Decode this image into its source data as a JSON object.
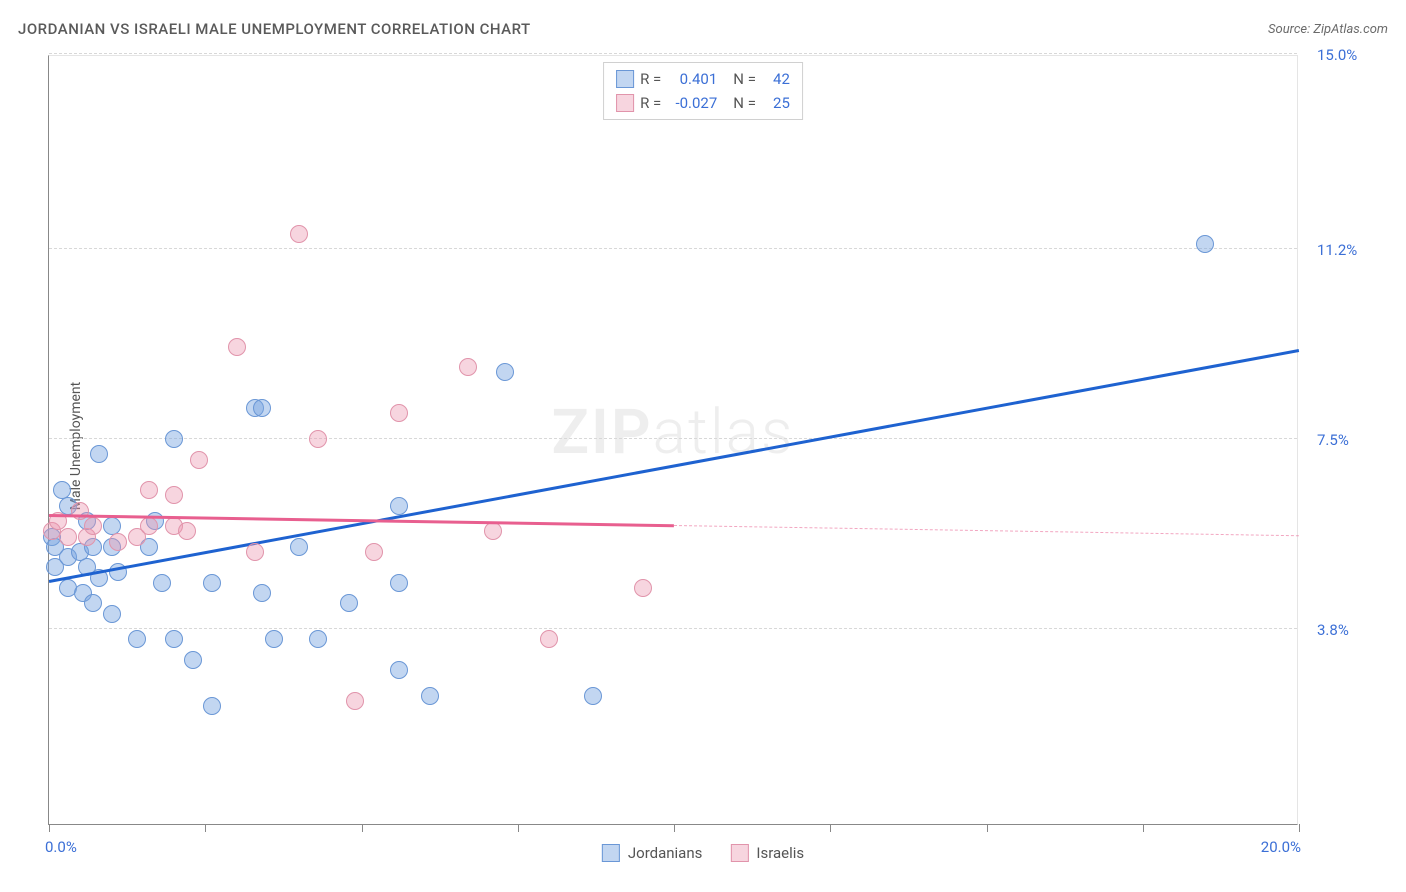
{
  "title": "JORDANIAN VS ISRAELI MALE UNEMPLOYMENT CORRELATION CHART",
  "source": "Source: ZipAtlas.com",
  "ylabel": "Male Unemployment",
  "watermark_bold": "ZIP",
  "watermark_light": "atlas",
  "chart": {
    "type": "scatter",
    "background_color": "#ffffff",
    "grid_color": "#d8d8d8",
    "axis_color": "#888888",
    "xlim": [
      0,
      20
    ],
    "ylim": [
      0,
      15
    ],
    "xtick_positions": [
      0,
      2.5,
      5,
      7.5,
      10,
      12.5,
      15,
      17.5,
      20
    ],
    "x_min_label": "0.0%",
    "x_max_label": "20.0%",
    "ytick_lines": [
      3.8,
      7.5,
      11.2,
      15.0
    ],
    "ytick_labels": [
      "3.8%",
      "7.5%",
      "11.2%",
      "15.0%"
    ],
    "marker_radius": 9,
    "marker_stroke_width": 1.5,
    "trend_line_width": 2.5,
    "series": [
      {
        "name": "Jordanians",
        "fill_color": "rgba(120,165,225,0.45)",
        "stroke_color": "#6a97d6",
        "trend_color": "#1e62d0",
        "trend_style": "solid",
        "R": "0.401",
        "N": "42",
        "trend_x1": 0,
        "trend_y1": 4.7,
        "trend_x2": 20,
        "trend_y2": 9.2,
        "points": [
          [
            0.05,
            5.6
          ],
          [
            0.1,
            5.4
          ],
          [
            0.1,
            5.0
          ],
          [
            0.2,
            6.5
          ],
          [
            0.3,
            5.2
          ],
          [
            0.3,
            4.6
          ],
          [
            0.3,
            6.2
          ],
          [
            0.5,
            5.3
          ],
          [
            0.55,
            4.5
          ],
          [
            0.6,
            5.9
          ],
          [
            0.6,
            5.0
          ],
          [
            0.7,
            5.4
          ],
          [
            0.7,
            4.3
          ],
          [
            0.8,
            7.2
          ],
          [
            0.8,
            4.8
          ],
          [
            1.0,
            5.4
          ],
          [
            1.0,
            5.8
          ],
          [
            1.0,
            4.1
          ],
          [
            1.1,
            4.9
          ],
          [
            1.4,
            3.6
          ],
          [
            1.6,
            5.4
          ],
          [
            1.7,
            5.9
          ],
          [
            1.8,
            4.7
          ],
          [
            2.0,
            7.5
          ],
          [
            2.0,
            3.6
          ],
          [
            2.3,
            3.2
          ],
          [
            2.6,
            4.7
          ],
          [
            2.6,
            2.3
          ],
          [
            3.3,
            8.1
          ],
          [
            3.4,
            8.1
          ],
          [
            3.4,
            4.5
          ],
          [
            3.6,
            3.6
          ],
          [
            4.0,
            5.4
          ],
          [
            4.3,
            3.6
          ],
          [
            4.8,
            4.3
          ],
          [
            5.6,
            4.7
          ],
          [
            5.6,
            3.0
          ],
          [
            5.6,
            6.2
          ],
          [
            6.1,
            2.5
          ],
          [
            7.3,
            8.8
          ],
          [
            8.7,
            2.5
          ],
          [
            18.5,
            11.3
          ]
        ]
      },
      {
        "name": "Israelis",
        "fill_color": "rgba(235,150,175,0.40)",
        "stroke_color": "#e194ab",
        "trend_color": "#e85f8f",
        "trend_style": "solid_then_dashed",
        "trend_dash_from_x": 10,
        "R": "-0.027",
        "N": "25",
        "trend_x1": 0,
        "trend_y1": 6.0,
        "trend_x2": 20,
        "trend_y2": 5.6,
        "points": [
          [
            0.05,
            5.7
          ],
          [
            0.15,
            5.9
          ],
          [
            0.3,
            5.6
          ],
          [
            0.5,
            6.1
          ],
          [
            0.6,
            5.6
          ],
          [
            0.7,
            5.8
          ],
          [
            1.1,
            5.5
          ],
          [
            1.4,
            5.6
          ],
          [
            1.6,
            5.8
          ],
          [
            1.6,
            6.5
          ],
          [
            2.0,
            6.4
          ],
          [
            2.0,
            5.8
          ],
          [
            2.2,
            5.7
          ],
          [
            2.4,
            7.1
          ],
          [
            3.0,
            9.3
          ],
          [
            3.3,
            5.3
          ],
          [
            4.0,
            11.5
          ],
          [
            4.3,
            7.5
          ],
          [
            4.9,
            2.4
          ],
          [
            5.2,
            5.3
          ],
          [
            5.6,
            8.0
          ],
          [
            6.7,
            8.9
          ],
          [
            7.1,
            5.7
          ],
          [
            8.0,
            3.6
          ],
          [
            9.5,
            4.6
          ]
        ]
      }
    ]
  },
  "legend_top_labels": {
    "R": "R =",
    "N": "N ="
  },
  "legend_bottom": [
    "Jordanians",
    "Israelis"
  ]
}
